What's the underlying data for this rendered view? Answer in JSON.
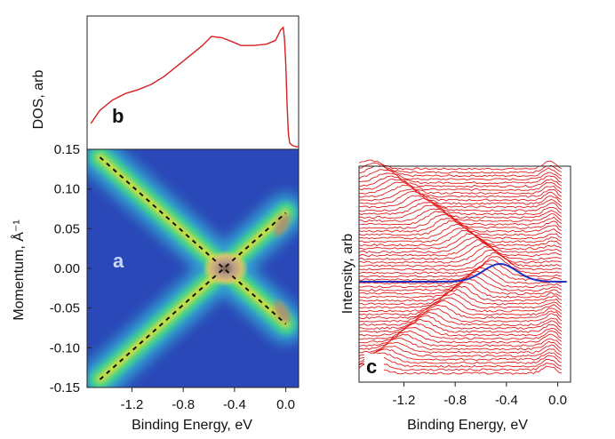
{
  "chart_data": [
    {
      "id": "b",
      "type": "line",
      "panel_label": "b",
      "ylabel": "DOS, arb",
      "xlim": [
        -1.55,
        0.1
      ],
      "x": [
        -1.52,
        -1.45,
        -1.35,
        -1.25,
        -1.15,
        -1.05,
        -0.95,
        -0.85,
        -0.75,
        -0.65,
        -0.58,
        -0.5,
        -0.42,
        -0.35,
        -0.25,
        -0.15,
        -0.08,
        -0.04,
        -0.02,
        -0.01,
        0.0,
        0.01,
        0.02,
        0.03,
        0.05,
        0.08,
        0.1
      ],
      "y": [
        0.2,
        0.3,
        0.38,
        0.43,
        0.46,
        0.5,
        0.56,
        0.64,
        0.72,
        0.8,
        0.87,
        0.86,
        0.83,
        0.8,
        0.8,
        0.81,
        0.84,
        0.92,
        0.94,
        0.85,
        0.65,
        0.35,
        0.12,
        0.05,
        0.03,
        0.02,
        0.02
      ],
      "color": "#d42020"
    },
    {
      "id": "a",
      "type": "heatmap",
      "panel_label": "a",
      "title": "",
      "xlabel": "Binding Energy, eV",
      "ylabel": "Momentum, Å⁻¹",
      "xlim": [
        -1.55,
        0.1
      ],
      "ylim": [
        -0.15,
        0.15
      ],
      "xticks": [
        -1.2,
        -0.8,
        -0.4,
        0.0
      ],
      "xtick_labels": [
        "-1.2",
        "-0.8",
        "-0.4",
        "0.0"
      ],
      "yticks": [
        0.15,
        0.1,
        0.05,
        0.0,
        -0.05,
        -0.1,
        -0.15
      ],
      "ytick_labels": [
        "0.15",
        "0.10",
        "0.05",
        "0.00",
        "-0.05",
        "-0.10",
        "-0.15"
      ],
      "dirac_point": {
        "energy": -0.47,
        "momentum": 0.0
      },
      "dashed_lines": [
        {
          "from": [
            -1.45,
            0.14
          ],
          "to": [
            0.0,
            -0.07
          ]
        },
        {
          "from": [
            -1.45,
            -0.14
          ],
          "to": [
            0.0,
            0.07
          ]
        }
      ],
      "colormap": [
        "#2040b0",
        "#30a0d0",
        "#40d090",
        "#d0e040",
        "#b09070"
      ]
    },
    {
      "id": "c",
      "type": "line",
      "panel_label": "c",
      "xlabel": "Binding Energy, eV",
      "ylabel": "Intensity, arb",
      "xlim": [
        -1.55,
        0.1
      ],
      "xticks": [
        -1.2,
        -0.8,
        -0.4,
        0.0
      ],
      "xtick_labels": [
        "-1.2",
        "-0.8",
        "-0.4",
        "0.0"
      ],
      "n_curves": 60,
      "series": [
        {
          "name": "EDC stack",
          "color": "#e01010"
        },
        {
          "name": "EDC at Dirac point",
          "color": "#2030c0",
          "peak_energy": -0.45
        }
      ]
    }
  ]
}
